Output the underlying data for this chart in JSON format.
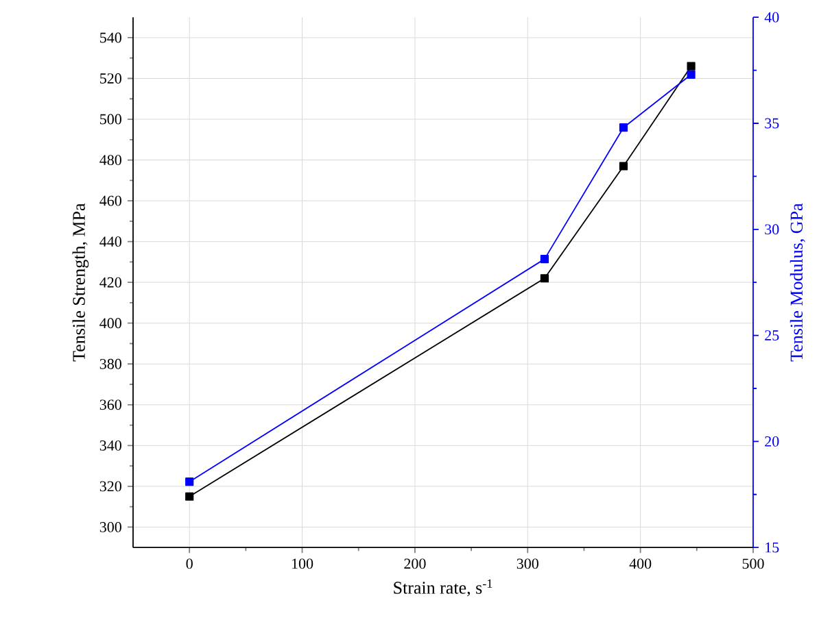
{
  "chart_data": {
    "type": "line",
    "xlabel": "Strain rate, s$^{-1}$",
    "ylabel": "Tensile Strength, MPa",
    "y2label": "Tensile Modulus, GPa",
    "x": [
      0,
      315,
      385,
      445
    ],
    "series": [
      {
        "color": "#000000",
        "values": [
          315,
          422,
          477,
          526
        ]
      },
      {
        "color": "#0000ff",
        "values": [
          18.1,
          28.6,
          34.8,
          37.3
        ],
        "axis": "y2"
      }
    ],
    "xlim": [
      -50,
      500
    ],
    "xticks": [
      0,
      100,
      200,
      300,
      400,
      500
    ],
    "ylim": [
      290,
      550
    ],
    "yticks": [
      300,
      320,
      340,
      360,
      380,
      400,
      420,
      440,
      460,
      480,
      500,
      520,
      540
    ],
    "y2lim": [
      15,
      40
    ],
    "y2ticks": [
      15,
      20,
      25,
      30,
      35,
      40
    ],
    "grid": true,
    "marker": "square",
    "line_style": "solid"
  }
}
